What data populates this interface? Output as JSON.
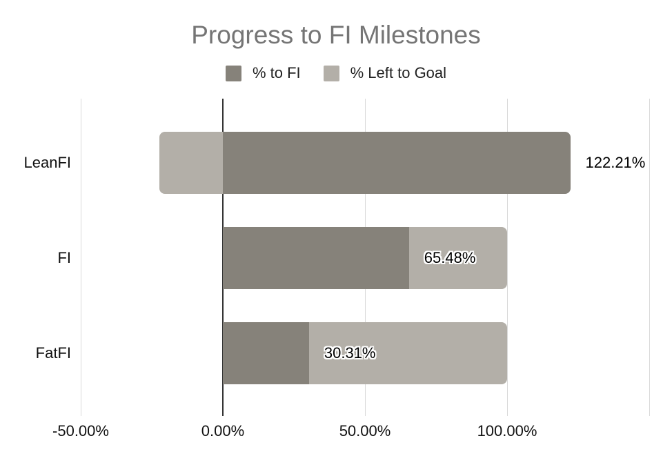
{
  "title": "Progress to FI Milestones",
  "legend": {
    "items": [
      {
        "label": "% to FI",
        "color": "#86827a"
      },
      {
        "label": "% Left to Goal",
        "color": "#b3afa8"
      }
    ]
  },
  "chart_data": {
    "type": "bar",
    "orientation": "horizontal",
    "stacked": true,
    "title": "Progress to FI Milestones",
    "categories": [
      "LeanFI",
      "FI",
      "FatFI"
    ],
    "series": [
      {
        "name": "% to FI",
        "color": "#86827a",
        "values": [
          122.21,
          65.48,
          30.31
        ]
      },
      {
        "name": "% Left to Goal",
        "color": "#b3afa8",
        "values": [
          -22.21,
          34.52,
          69.69
        ]
      }
    ],
    "data_labels": [
      "122.21%",
      "65.48%",
      "30.31%"
    ],
    "x_ticks": [
      {
        "value": -50,
        "label": "-50.00%"
      },
      {
        "value": 0,
        "label": "0.00%"
      },
      {
        "value": 50,
        "label": "50.00%"
      },
      {
        "value": 100,
        "label": "100.00%"
      }
    ],
    "xlim": [
      -50,
      150
    ],
    "grid_step": 50,
    "grid": true,
    "legend_position": "top",
    "colors": {
      "gridline": "#d9d9d9",
      "zero_axis": "#333333",
      "title_text": "#757575",
      "axis_text": "#111111",
      "label_text": "#000000"
    }
  }
}
